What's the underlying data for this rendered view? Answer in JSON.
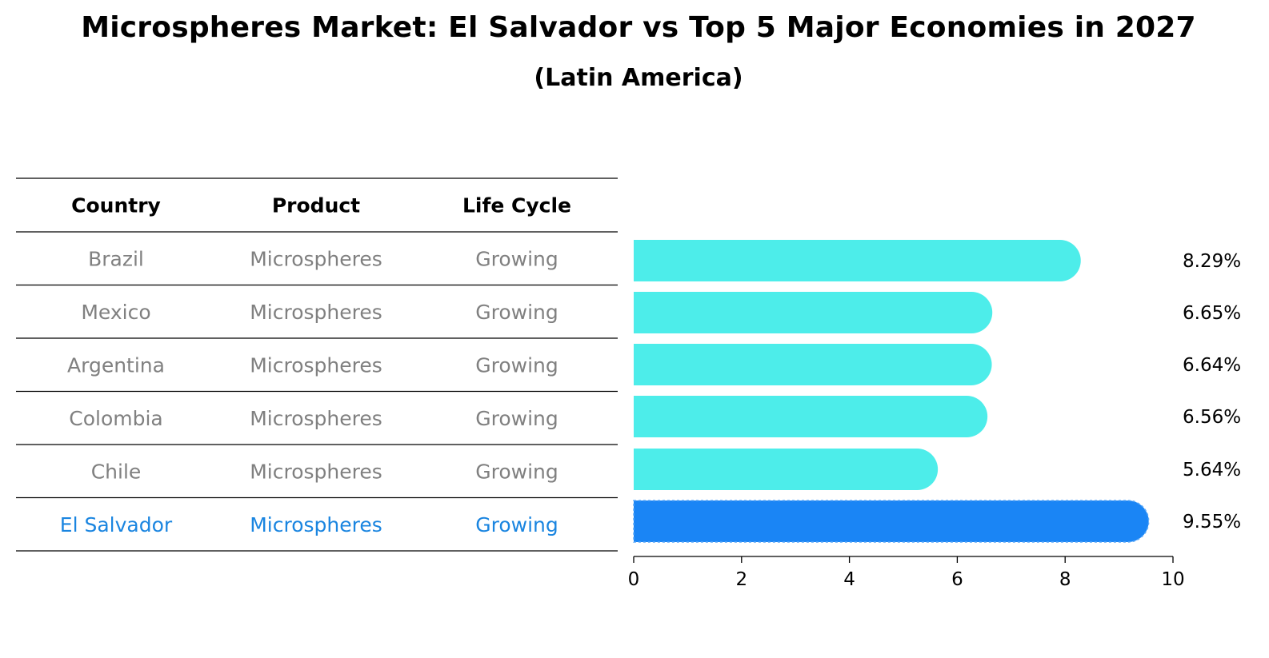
{
  "chart_data": {
    "type": "bar",
    "orientation": "horizontal",
    "title": "Microspheres Market: El Salvador vs Top 5 Major Economies in 2027",
    "subtitle": "(Latin America)",
    "table": {
      "columns": [
        "Country",
        "Product",
        "Life Cycle"
      ],
      "rows": [
        {
          "country": "Brazil",
          "product": "Microspheres",
          "life_cycle": "Growing"
        },
        {
          "country": "Mexico",
          "product": "Microspheres",
          "life_cycle": "Growing"
        },
        {
          "country": "Argentina",
          "product": "Microspheres",
          "life_cycle": "Growing"
        },
        {
          "country": "Colombia",
          "product": "Microspheres",
          "life_cycle": "Growing"
        },
        {
          "country": "Chile",
          "product": "Microspheres",
          "life_cycle": "Growing"
        },
        {
          "country": "El Salvador",
          "product": "Microspheres",
          "life_cycle": "Growing"
        }
      ]
    },
    "categories": [
      "Brazil",
      "Mexico",
      "Argentina",
      "Colombia",
      "Chile",
      "El Salvador"
    ],
    "values": [
      8.29,
      6.65,
      6.64,
      6.56,
      5.64,
      9.55
    ],
    "value_labels": [
      "8.29%",
      "6.65%",
      "6.64%",
      "6.56%",
      "5.64%",
      "9.55%"
    ],
    "highlight": "El Salvador",
    "xlim": [
      0,
      10
    ],
    "xticks": [
      "0",
      "2",
      "4",
      "6",
      "8",
      "10"
    ],
    "colors": {
      "bar": "#4dedea",
      "highlight_bar": "#1a85f5",
      "highlight_text": "#1a85e0",
      "muted_text": "#808080"
    }
  }
}
